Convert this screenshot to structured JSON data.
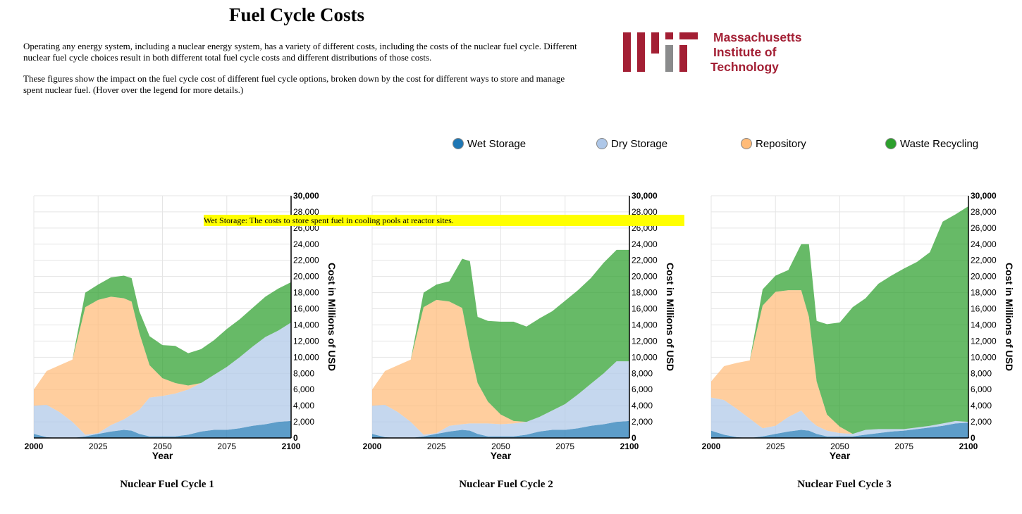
{
  "page": {
    "title": "Fuel Cycle Costs",
    "intro_1": "Operating any energy system, including a nuclear energy system, has a variety of different costs, including the costs of the nuclear fuel cycle. Different nuclear fuel cycle choices result in both different total fuel cycle costs and different distributions of those costs.",
    "intro_2": "These figures show the impact on the fuel cycle cost of different fuel cycle options, broken down by the cost for different ways to store and manage spent nuclear fuel. (Hover over the legend for more details.)"
  },
  "logo": {
    "line1": "Massachusetts",
    "line2": "Institute of",
    "line3": "Technology",
    "colors": {
      "red": "#a31f34",
      "gray": "#8a8b8c"
    }
  },
  "legend": [
    {
      "label": "Wet Storage",
      "color": "#1f77b4"
    },
    {
      "label": "Dry Storage",
      "color": "#aec7e8"
    },
    {
      "label": "Repository",
      "color": "#ffbb78"
    },
    {
      "label": "Waste Recycling",
      "color": "#2ca02c"
    }
  ],
  "tooltip": {
    "text": "Wet Storage: The costs to store spent fuel in cooling pools at reactor sites."
  },
  "colors": {
    "wet": "#1f77b4",
    "dry": "#aec7e8",
    "repository": "#ffbb78",
    "recycling": "#2ca02c",
    "grid": "#e5e5e5"
  },
  "chart_data": [
    {
      "type": "area",
      "stacked": true,
      "title": "Nuclear Fuel Cycle 1",
      "xlabel": "Year",
      "ylabel": "Cost in Millions of USD",
      "xlim": [
        2000,
        2100
      ],
      "ylim": [
        0,
        30000
      ],
      "x_ticks": [
        "2000",
        "2025",
        "2050",
        "2075",
        "2100"
      ],
      "y_ticks": [
        "0",
        "2,000",
        "4,000",
        "6,000",
        "8,000",
        "10,000",
        "12,000",
        "14,000",
        "16,000",
        "18,000",
        "20,000",
        "22,000",
        "24,000",
        "26,000",
        "28,000",
        "30,000"
      ],
      "x": [
        2000,
        2005,
        2010,
        2015,
        2020,
        2025,
        2030,
        2035,
        2038,
        2041,
        2045,
        2050,
        2055,
        2060,
        2065,
        2070,
        2075,
        2080,
        2085,
        2090,
        2095,
        2100
      ],
      "series": [
        {
          "name": "Wet Storage",
          "values": [
            500,
            100,
            0,
            0,
            200,
            500,
            800,
            1000,
            900,
            500,
            200,
            200,
            200,
            400,
            800,
            1000,
            1000,
            1200,
            1500,
            1700,
            2000,
            2100
          ]
        },
        {
          "name": "Dry Storage",
          "values": [
            3500,
            4000,
            3200,
            2000,
            200,
            100,
            800,
            1300,
            2000,
            3000,
            4800,
            5000,
            5300,
            5600,
            6000,
            6800,
            7800,
            8800,
            9800,
            10800,
            11300,
            12200
          ]
        },
        {
          "name": "Repository",
          "values": [
            2000,
            4200,
            5800,
            7700,
            15800,
            16500,
            15900,
            15000,
            14000,
            9500,
            4000,
            2200,
            1300,
            500,
            0,
            0,
            0,
            0,
            0,
            0,
            0,
            0
          ]
        },
        {
          "name": "Waste Recycling",
          "values": [
            0,
            0,
            0,
            0,
            1800,
            1900,
            2400,
            2800,
            2900,
            2700,
            3600,
            4100,
            4600,
            4000,
            4200,
            4300,
            4700,
            4700,
            4800,
            5000,
            5200,
            5000
          ]
        }
      ]
    },
    {
      "type": "area",
      "stacked": true,
      "title": "Nuclear Fuel Cycle 2",
      "xlabel": "Year",
      "ylabel": "Cost in Millions of USD",
      "xlim": [
        2000,
        2100
      ],
      "ylim": [
        0,
        30000
      ],
      "x_ticks": [
        "2000",
        "2025",
        "2050",
        "2075",
        "2100"
      ],
      "y_ticks": [
        "0",
        "2,000",
        "4,000",
        "6,000",
        "8,000",
        "10,000",
        "12,000",
        "14,000",
        "16,000",
        "18,000",
        "20,000",
        "22,000",
        "24,000",
        "26,000",
        "28,000",
        "30,000"
      ],
      "x": [
        2000,
        2005,
        2010,
        2015,
        2020,
        2025,
        2030,
        2035,
        2038,
        2041,
        2045,
        2050,
        2055,
        2060,
        2065,
        2070,
        2075,
        2080,
        2085,
        2090,
        2095,
        2100
      ],
      "series": [
        {
          "name": "Wet Storage",
          "values": [
            500,
            100,
            0,
            0,
            200,
            500,
            800,
            1000,
            900,
            500,
            200,
            200,
            200,
            400,
            800,
            1000,
            1000,
            1200,
            1500,
            1700,
            2000,
            2100
          ]
        },
        {
          "name": "Dry Storage",
          "values": [
            3500,
            4000,
            3200,
            2000,
            200,
            100,
            700,
            700,
            900,
            1300,
            1600,
            1500,
            1600,
            1600,
            1800,
            2400,
            3200,
            4200,
            5200,
            6300,
            7500,
            7400
          ]
        },
        {
          "name": "Repository",
          "values": [
            2000,
            4200,
            5800,
            7700,
            15800,
            16500,
            15400,
            14400,
            9300,
            5000,
            2700,
            1200,
            300,
            0,
            0,
            0,
            0,
            0,
            0,
            0,
            0,
            0
          ]
        },
        {
          "name": "Waste Recycling",
          "values": [
            0,
            0,
            0,
            0,
            1800,
            1900,
            2500,
            6100,
            10800,
            8200,
            10000,
            11500,
            12300,
            11800,
            12200,
            12300,
            12800,
            12900,
            13100,
            13700,
            13800,
            13800
          ]
        }
      ]
    },
    {
      "type": "area",
      "stacked": true,
      "title": "Nuclear Fuel Cycle 3",
      "xlabel": "Year",
      "ylabel": "Cost in Millions of USD",
      "xlim": [
        2000,
        2100
      ],
      "ylim": [
        0,
        30000
      ],
      "x_ticks": [
        "2000",
        "2025",
        "2050",
        "2075",
        "2100"
      ],
      "y_ticks": [
        "0",
        "2,000",
        "4,000",
        "6,000",
        "8,000",
        "10,000",
        "12,000",
        "14,000",
        "16,000",
        "18,000",
        "20,000",
        "22,000",
        "24,000",
        "26,000",
        "28,000",
        "30,000"
      ],
      "x": [
        2000,
        2005,
        2010,
        2015,
        2020,
        2025,
        2030,
        2035,
        2038,
        2041,
        2045,
        2050,
        2055,
        2060,
        2065,
        2070,
        2075,
        2080,
        2085,
        2090,
        2095,
        2100
      ],
      "series": [
        {
          "name": "Wet Storage",
          "values": [
            900,
            400,
            100,
            0,
            200,
            500,
            800,
            1000,
            900,
            500,
            200,
            200,
            200,
            400,
            600,
            800,
            900,
            1100,
            1300,
            1500,
            1800,
            1900
          ]
        },
        {
          "name": "Dry Storage",
          "values": [
            4100,
            4300,
            3500,
            2400,
            1000,
            1000,
            1800,
            2400,
            1400,
            1000,
            700,
            400,
            300,
            600,
            500,
            300,
            200,
            200,
            200,
            300,
            300,
            100
          ]
        },
        {
          "name": "Repository",
          "values": [
            2000,
            4200,
            5700,
            7200,
            15200,
            16600,
            15700,
            14900,
            12700,
            5500,
            2000,
            800,
            0,
            0,
            0,
            0,
            0,
            0,
            0,
            0,
            0,
            0
          ]
        },
        {
          "name": "Waste Recycling",
          "values": [
            0,
            0,
            0,
            0,
            2000,
            2000,
            2500,
            5700,
            9000,
            7500,
            11200,
            12900,
            15700,
            16300,
            18000,
            19000,
            19900,
            20500,
            21500,
            25000,
            25600,
            26700
          ]
        }
      ]
    }
  ]
}
